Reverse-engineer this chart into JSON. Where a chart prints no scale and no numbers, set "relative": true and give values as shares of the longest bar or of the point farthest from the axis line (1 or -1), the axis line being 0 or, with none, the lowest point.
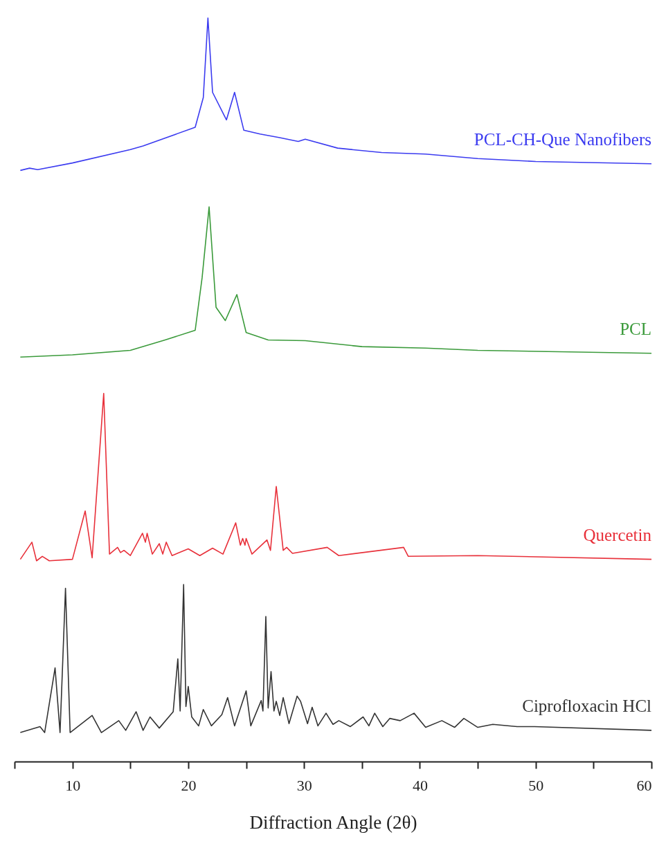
{
  "chart_data": {
    "type": "line",
    "xlabel": "Diffraction Angle (2θ)",
    "relative": true,
    "xlim": [
      5,
      60
    ],
    "xticks": [
      {
        "value": 5,
        "label": null
      },
      10,
      {
        "value": 15,
        "label": null
      },
      20,
      {
        "value": 25,
        "label": null
      },
      30,
      {
        "value": 35,
        "label": null
      },
      40,
      {
        "value": 45,
        "label": null
      },
      50,
      {
        "value": 55,
        "label": null
      },
      60
    ],
    "series": [
      {
        "name": "PCL-CH-Que Nanofibers",
        "color": "#3b3bf0",
        "x": [
          5.5,
          6.3,
          7,
          10,
          15,
          16.1,
          20.6,
          21.3,
          21.7,
          22.1,
          23.3,
          24.0,
          24.8,
          26.2,
          27.9,
          29.5,
          30.1,
          32.9,
          36.7,
          40.5,
          45,
          50,
          60
        ],
        "values": [
          0.795,
          0.798,
          0.796,
          0.805,
          0.823,
          0.828,
          0.853,
          0.893,
          1.0,
          0.9,
          0.863,
          0.9,
          0.849,
          0.844,
          0.839,
          0.834,
          0.837,
          0.825,
          0.819,
          0.817,
          0.811,
          0.807,
          0.804
        ]
      },
      {
        "name": "PCL",
        "color": "#3a9a3a",
        "x": [
          5.5,
          10,
          15,
          18,
          20.6,
          21.2,
          21.8,
          22.4,
          23.2,
          24.2,
          25.0,
          26.9,
          30.1,
          35,
          40.5,
          45,
          60
        ],
        "values": [
          0.544,
          0.547,
          0.553,
          0.567,
          0.58,
          0.651,
          0.746,
          0.611,
          0.593,
          0.628,
          0.577,
          0.567,
          0.566,
          0.558,
          0.556,
          0.553,
          0.549
        ]
      },
      {
        "name": "Quercetin",
        "color": "#e8303a",
        "x": [
          5.5,
          6.5,
          6.9,
          7.4,
          8,
          10,
          11.1,
          11.7,
          12.7,
          13.2,
          13.9,
          14.15,
          14.45,
          15.0,
          16.05,
          16.3,
          16.45,
          16.9,
          17.5,
          17.8,
          18.1,
          18.6,
          20.0,
          21,
          22.1,
          23.0,
          24.1,
          24.5,
          24.7,
          24.9,
          25.0,
          25.5,
          26.8,
          27.1,
          27.6,
          28.2,
          28.5,
          29,
          32,
          33,
          38.6,
          39,
          45,
          60
        ],
        "values": [
          0.272,
          0.295,
          0.27,
          0.276,
          0.27,
          0.272,
          0.337,
          0.274,
          0.495,
          0.279,
          0.288,
          0.281,
          0.284,
          0.277,
          0.307,
          0.295,
          0.307,
          0.279,
          0.293,
          0.279,
          0.295,
          0.277,
          0.286,
          0.277,
          0.287,
          0.279,
          0.321,
          0.291,
          0.3,
          0.291,
          0.3,
          0.279,
          0.298,
          0.284,
          0.37,
          0.284,
          0.288,
          0.28,
          0.288,
          0.277,
          0.288,
          0.276,
          0.277,
          0.272
        ]
      },
      {
        "name": "Ciprofloxacin HCl",
        "color": "#333333",
        "x": [
          5.5,
          7.2,
          7.6,
          8.5,
          8.93,
          9.4,
          9.8,
          11.7,
          12.5,
          14.0,
          14.6,
          15.5,
          16.1,
          16.7,
          17.5,
          18.7,
          19.1,
          19.3,
          19.6,
          19.8,
          20.0,
          20.3,
          20.9,
          21.3,
          22.0,
          22.9,
          23.4,
          24.0,
          25.0,
          25.4,
          26.3,
          26.45,
          26.7,
          26.9,
          27.15,
          27.4,
          27.6,
          27.9,
          28.2,
          28.7,
          29.4,
          29.7,
          30.3,
          30.7,
          31.2,
          31.9,
          32.5,
          33,
          34,
          35.1,
          35.6,
          36.1,
          36.8,
          37.4,
          38.3,
          39.5,
          40.5,
          41.9,
          43,
          43.8,
          45,
          46.3,
          48.4,
          49.9,
          60
        ],
        "values": [
          0.039,
          0.047,
          0.039,
          0.126,
          0.039,
          0.233,
          0.039,
          0.062,
          0.039,
          0.055,
          0.042,
          0.067,
          0.042,
          0.06,
          0.045,
          0.067,
          0.138,
          0.068,
          0.238,
          0.074,
          0.101,
          0.06,
          0.048,
          0.07,
          0.048,
          0.063,
          0.086,
          0.048,
          0.095,
          0.048,
          0.082,
          0.068,
          0.195,
          0.072,
          0.121,
          0.068,
          0.081,
          0.062,
          0.086,
          0.051,
          0.088,
          0.081,
          0.051,
          0.073,
          0.048,
          0.065,
          0.05,
          0.055,
          0.047,
          0.06,
          0.048,
          0.065,
          0.047,
          0.058,
          0.055,
          0.065,
          0.046,
          0.055,
          0.046,
          0.058,
          0.046,
          0.05,
          0.047,
          0.047,
          0.042
        ]
      }
    ]
  }
}
